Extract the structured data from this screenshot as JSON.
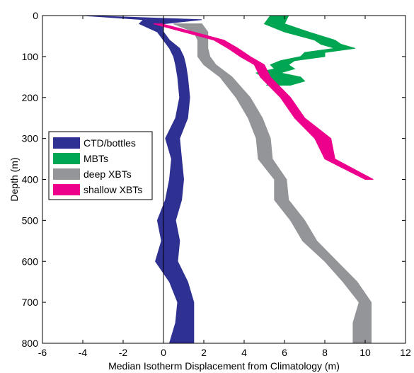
{
  "chart_data": {
    "type": "area",
    "xlabel": "Median Isotherm Displacement from Climatology (m)",
    "ylabel": "Depth (m)",
    "xlim": [
      -6,
      12
    ],
    "ylim": [
      0,
      800
    ],
    "y_inverted": true,
    "xticks": [
      -6,
      -4,
      -2,
      0,
      2,
      4,
      6,
      8,
      10,
      12
    ],
    "yticks": [
      0,
      100,
      200,
      300,
      400,
      500,
      600,
      700,
      800
    ],
    "reference_line_x": 0,
    "legend_position": "left-middle",
    "series": [
      {
        "name": "CTD/bottles",
        "color": "#2e3192",
        "depth": [
          0,
          10,
          20,
          40,
          60,
          80,
          100,
          120,
          150,
          200,
          250,
          300,
          350,
          400,
          450,
          500,
          550,
          600,
          650,
          700,
          750,
          800
        ],
        "lower": [
          -4.0,
          -1.0,
          -1.2,
          -0.3,
          0.0,
          0.3,
          0.5,
          0.6,
          0.7,
          0.8,
          0.6,
          0.1,
          0.4,
          0.3,
          0.1,
          -0.3,
          -0.1,
          -0.4,
          0.3,
          0.7,
          0.6,
          0.3
        ],
        "upper": [
          -4.0,
          1.9,
          0.0,
          0.0,
          0.3,
          0.8,
          1.0,
          1.1,
          1.2,
          1.3,
          1.2,
          0.8,
          0.9,
          1.0,
          0.9,
          0.6,
          0.8,
          0.7,
          1.2,
          1.5,
          1.5,
          1.5
        ]
      },
      {
        "name": "MBTs",
        "color": "#00a651",
        "depth": [
          0,
          20,
          40,
          60,
          70,
          80,
          90,
          100,
          110,
          120,
          130,
          140,
          150,
          160,
          170
        ],
        "lower": [
          5.3,
          5.0,
          6.0,
          7.5,
          7.8,
          8.5,
          7.0,
          6.8,
          5.8,
          5.3,
          5.5,
          4.6,
          4.9,
          5.5,
          5.1
        ],
        "upper": [
          6.2,
          6.0,
          7.2,
          8.5,
          8.8,
          9.5,
          8.0,
          8.0,
          6.5,
          6.2,
          6.5,
          5.8,
          6.8,
          7.0,
          6.3
        ]
      },
      {
        "name": "deep XBTs",
        "color": "#939598",
        "depth": [
          20,
          40,
          60,
          80,
          100,
          120,
          150,
          200,
          250,
          300,
          350,
          400,
          450,
          500,
          550,
          600,
          650,
          700,
          750,
          800
        ],
        "lower": [
          0.5,
          1.5,
          1.7,
          1.7,
          1.7,
          2.0,
          2.8,
          3.6,
          4.2,
          4.6,
          4.7,
          5.5,
          5.5,
          6.3,
          6.9,
          8.0,
          8.9,
          9.7,
          9.4,
          9.4
        ],
        "upper": [
          1.9,
          2.2,
          2.2,
          2.2,
          2.3,
          2.6,
          3.4,
          4.3,
          4.9,
          5.3,
          5.4,
          6.1,
          6.2,
          7.0,
          7.6,
          8.6,
          9.6,
          10.3,
          10.3,
          10.3
        ]
      },
      {
        "name": "shallow XBTs",
        "color": "#ec008c",
        "depth": [
          20,
          40,
          60,
          80,
          100,
          120,
          150,
          200,
          250,
          300,
          350,
          400
        ],
        "lower": [
          -0.5,
          1.0,
          2.5,
          3.2,
          3.8,
          4.5,
          4.8,
          5.8,
          6.5,
          7.5,
          8.0,
          10.0
        ],
        "upper": [
          -0.1,
          1.5,
          3.0,
          3.7,
          4.3,
          5.0,
          5.3,
          6.3,
          7.0,
          8.3,
          8.5,
          10.4
        ]
      }
    ]
  }
}
